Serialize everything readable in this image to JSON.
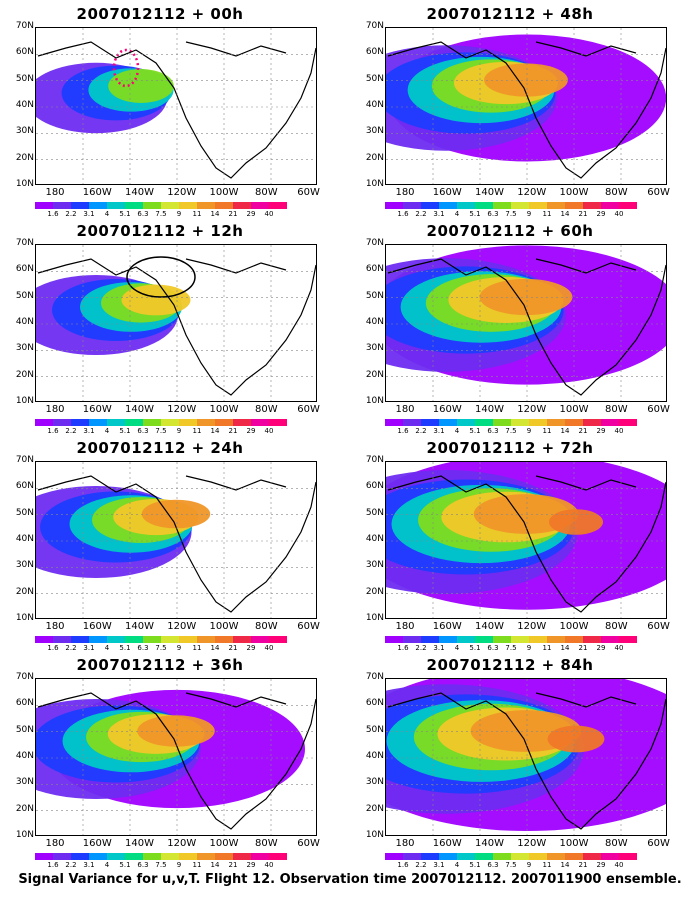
{
  "panels": [
    {
      "title": "2007012112 + 00h",
      "level": 0.18
    },
    {
      "title": "2007012112 + 48h",
      "level": 0.62
    },
    {
      "title": "2007012112 + 12h",
      "level": 0.3
    },
    {
      "title": "2007012112 + 60h",
      "level": 0.72
    },
    {
      "title": "2007012112 + 24h",
      "level": 0.45
    },
    {
      "title": "2007012112 + 72h",
      "level": 0.85
    },
    {
      "title": "2007012112 + 36h",
      "level": 0.55
    },
    {
      "title": "2007012112 + 84h",
      "level": 0.92
    }
  ],
  "lat_labels": [
    "70N",
    "60N",
    "50N",
    "40N",
    "30N",
    "20N",
    "10N"
  ],
  "lon_labels": [
    "180",
    "160W",
    "140W",
    "120W",
    "100W",
    "80W",
    "60W"
  ],
  "colorbar": {
    "labels": [
      "1.6",
      "2.2",
      "3.1",
      "4",
      "5.1",
      "6.3",
      "7.5",
      "9",
      "11",
      "14",
      "21",
      "29",
      "40"
    ],
    "colors": [
      "#9f00ff",
      "#6e2cf0",
      "#1e3cff",
      "#0096ff",
      "#00c8c8",
      "#00dc82",
      "#7ddc1e",
      "#d2e632",
      "#f0c828",
      "#f09628",
      "#f07828",
      "#f02848",
      "#f000a0",
      "#ff0078"
    ]
  },
  "caption": "Signal Variance for u,v,T. Flight 12. Observation time 2007012112. 2007011900 ensemble."
}
